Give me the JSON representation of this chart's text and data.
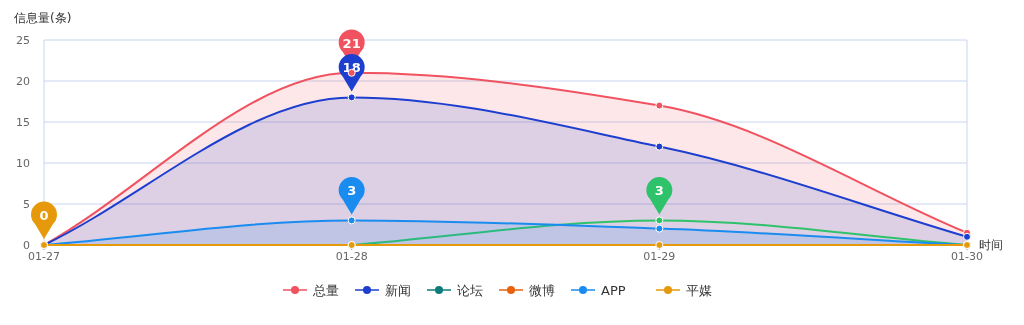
{
  "chart_data": {
    "type": "line",
    "ylabel": "信息量(条)",
    "xlabel": "时间",
    "categories": [
      "01-27",
      "01-28",
      "01-29",
      "01-30"
    ],
    "ylim": [
      0,
      25
    ],
    "yticks": [
      0,
      5,
      10,
      15,
      20,
      25
    ],
    "grid": "y",
    "legend": "bottom",
    "marker": "circle",
    "series": [
      {
        "name": "总量",
        "type": "area",
        "color": "#f0525f",
        "values": [
          0,
          21,
          17,
          1.5
        ],
        "value_labels": [
          null,
          "21",
          null,
          null
        ]
      },
      {
        "name": "新闻",
        "type": "area",
        "color": "#1d3fcf",
        "values": [
          0,
          18,
          12,
          1
        ],
        "value_labels": [
          null,
          "18",
          null,
          null
        ]
      },
      {
        "name": "论坛",
        "type": "line",
        "color": "#0f7b7b",
        "values": [
          null,
          null,
          null,
          null
        ]
      },
      {
        "name": "微博",
        "type": "line",
        "color": "#e8620c",
        "values": [
          null,
          null,
          null,
          null
        ]
      },
      {
        "type": "line",
        "color": "#2ec26a",
        "values": [
          null,
          0,
          3,
          0
        ],
        "value_labels": [
          null,
          null,
          "3",
          null
        ]
      },
      {
        "name": "APP",
        "type": "area",
        "color": "#1a8cf0",
        "values": [
          0,
          3,
          2,
          0
        ],
        "value_labels": [
          null,
          "3",
          null,
          null
        ]
      },
      {
        "name": "平媒",
        "type": "line",
        "color": "#e69a0b",
        "values": [
          0,
          0,
          0,
          0
        ],
        "value_labels": [
          "0",
          null,
          null,
          null
        ]
      }
    ]
  }
}
